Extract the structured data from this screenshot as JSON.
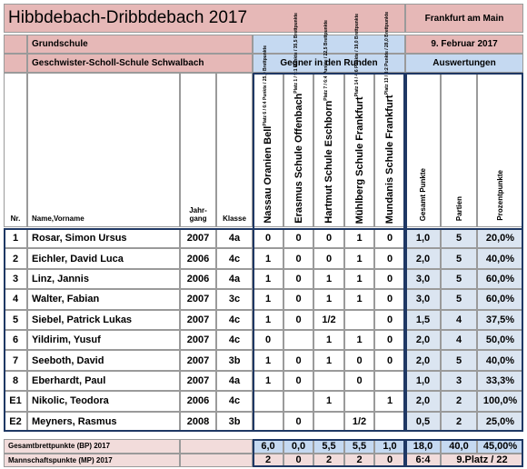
{
  "header": {
    "title": "Hibbdebach-Dribbdebach 2017",
    "city": "Frankfurt am Main",
    "school_type": "Grundschule",
    "date": "9. Februar 2017",
    "school": "Geschwister-Scholl-Schule Schwalbach",
    "opponents_label": "Gegner in den Runden",
    "evaluation_label": "Auswertungen"
  },
  "columns": {
    "nr": "Nr.",
    "name": "Name,Vorname",
    "year": "Jahr-gang",
    "class": "Klasse",
    "opponents": [
      {
        "name": "Nassau Oranien Bell",
        "info": "Platz 6 / 6:4 Punkte / 25,0 Brettpunkte"
      },
      {
        "name": "Erasmus Schule Offenbach",
        "info": "Platz 1 / 9:1 Punkte / 35,5 Brettpunkte"
      },
      {
        "name": "Hartmut Schule Eschborn",
        "info": "Platz 7 / 6:4 Punkte / 22,5 Brettpunkte"
      },
      {
        "name": "Mühlberg Schule Frankfurt",
        "info": "Platz 14 / 4:6 Punkte / 19,0 Brettpunkte"
      },
      {
        "name": "Mundanis Schule Frankfurt",
        "info": "Platz 13 / 8:2 Punkte / 28,0 Brettpunkte"
      }
    ],
    "total": "Gesamt Punkte",
    "games": "Partien",
    "percent": "Prozentpunkte"
  },
  "rows": [
    {
      "nr": "1",
      "name": "Rosar, Simon Ursus",
      "year": "2007",
      "class": "4a",
      "results": [
        "0",
        "0",
        "0",
        "1",
        "0"
      ],
      "total": "1,0",
      "games": "5",
      "percent": "20,0%"
    },
    {
      "nr": "2",
      "name": "Eichler, David Luca",
      "year": "2006",
      "class": "4c",
      "results": [
        "1",
        "0",
        "0",
        "1",
        "0"
      ],
      "total": "2,0",
      "games": "5",
      "percent": "40,0%"
    },
    {
      "nr": "3",
      "name": "Linz, Jannis",
      "year": "2006",
      "class": "4a",
      "results": [
        "1",
        "0",
        "1",
        "1",
        "0"
      ],
      "total": "3,0",
      "games": "5",
      "percent": "60,0%"
    },
    {
      "nr": "4",
      "name": "Walter, Fabian",
      "year": "2007",
      "class": "3c",
      "results": [
        "1",
        "0",
        "1",
        "1",
        "0"
      ],
      "total": "3,0",
      "games": "5",
      "percent": "60,0%"
    },
    {
      "nr": "5",
      "name": "Siebel, Patrick Lukas",
      "year": "2007",
      "class": "4c",
      "results": [
        "1",
        "0",
        "1/2",
        null,
        "0"
      ],
      "total": "1,5",
      "games": "4",
      "percent": "37,5%"
    },
    {
      "nr": "6",
      "name": "Yildirim, Yusuf",
      "year": "2007",
      "class": "4c",
      "results": [
        "0",
        null,
        "1",
        "1",
        "0"
      ],
      "total": "2,0",
      "games": "4",
      "percent": "50,0%"
    },
    {
      "nr": "7",
      "name": "Seeboth, David",
      "year": "2007",
      "class": "3b",
      "results": [
        "1",
        "0",
        "1",
        "0",
        "0"
      ],
      "total": "2,0",
      "games": "5",
      "percent": "40,0%"
    },
    {
      "nr": "8",
      "name": "Eberhardt, Paul",
      "year": "2007",
      "class": "4a",
      "results": [
        "1",
        "0",
        null,
        "0",
        null
      ],
      "total": "1,0",
      "games": "3",
      "percent": "33,3%"
    },
    {
      "nr": "E1",
      "name": "Nikolic, Teodora",
      "year": "2006",
      "class": "4c",
      "results": [
        null,
        null,
        "1",
        null,
        "1"
      ],
      "total": "2,0",
      "games": "2",
      "percent": "100,0%"
    },
    {
      "nr": "E2",
      "name": "Meyners, Rasmus",
      "year": "2008",
      "class": "3b",
      "results": [
        null,
        "0",
        null,
        "1/2",
        null
      ],
      "total": "0,5",
      "games": "2",
      "percent": "25,0%"
    }
  ],
  "footer": {
    "board_points": {
      "label": "Gesamtbrettpunkte (BP) 2017",
      "results": [
        "6,0",
        "0,0",
        "5,5",
        "5,5",
        "1,0"
      ],
      "total": "18,0",
      "games": "40,0",
      "percent": "45,00%"
    },
    "team_points": {
      "label": "Mannschaftspunkte (MP) 2017",
      "results": [
        "2",
        "0",
        "2",
        "2",
        "0"
      ],
      "total": "6:4",
      "placement": "9.Platz / 22"
    }
  }
}
